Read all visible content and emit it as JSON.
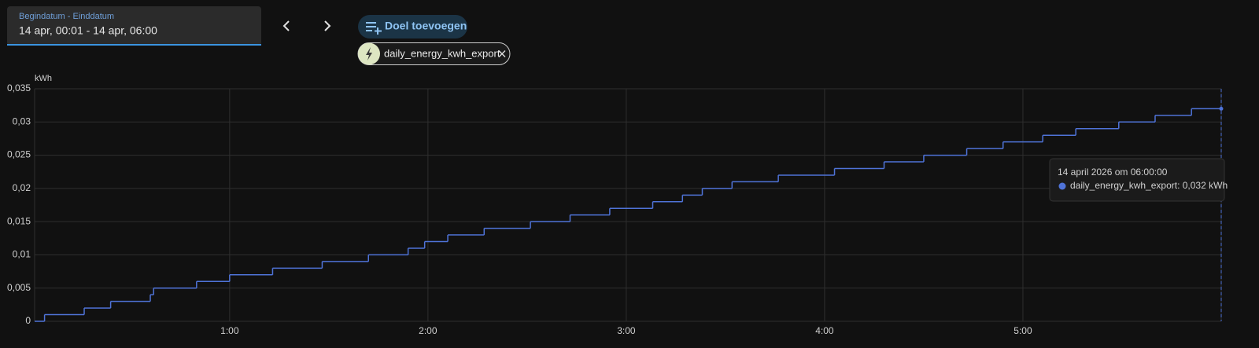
{
  "header": {
    "date_label": "Begindatum - Einddatum",
    "date_value": "14 apr, 00:01 - 14 apr, 06:00",
    "add_target": "Doel toevoegen"
  },
  "chart_data": {
    "type": "line",
    "step": true,
    "y_label": "kWh",
    "x": [
      1,
      4,
      16,
      24,
      36,
      37,
      50,
      60,
      73,
      88,
      102,
      114,
      119,
      126,
      137,
      151,
      163,
      175,
      188,
      197,
      203,
      212,
      226,
      243,
      258,
      270,
      283,
      294,
      306,
      316,
      329,
      340,
      351,
      360
    ],
    "series": [
      {
        "name": "daily_energy_kwh_export",
        "color": "#4f73d8",
        "values": [
          0,
          0.001,
          0.002,
          0.003,
          0.004,
          0.005,
          0.006,
          0.007,
          0.008,
          0.009,
          0.01,
          0.011,
          0.012,
          0.013,
          0.014,
          0.015,
          0.016,
          0.017,
          0.018,
          0.019,
          0.02,
          0.021,
          0.022,
          0.023,
          0.024,
          0.025,
          0.026,
          0.027,
          0.028,
          0.029,
          0.03,
          0.031,
          0.032,
          0.032
        ]
      }
    ],
    "xlim": [
      1,
      360
    ],
    "xticks": [
      {
        "value": 60,
        "label": "1:00"
      },
      {
        "value": 120,
        "label": "2:00"
      },
      {
        "value": 180,
        "label": "3:00"
      },
      {
        "value": 240,
        "label": "4:00"
      },
      {
        "value": 300,
        "label": "5:00"
      }
    ],
    "ylim": [
      0,
      0.035
    ],
    "yticks": [
      0,
      {
        "value": 0.005,
        "label": "0,005"
      },
      {
        "value": 0.01,
        "label": "0,01"
      },
      {
        "value": 0.015,
        "label": "0,015"
      },
      {
        "value": 0.02,
        "label": "0,02"
      },
      {
        "value": 0.025,
        "label": "0,025"
      },
      {
        "value": 0.03,
        "label": "0,03"
      },
      {
        "value": 0.035,
        "label": "0,035"
      }
    ],
    "grid": true,
    "tooltip": {
      "title": "14 april 2026 om 06:00:00",
      "text": "daily_energy_kwh_export: 0,032 kWh"
    }
  }
}
